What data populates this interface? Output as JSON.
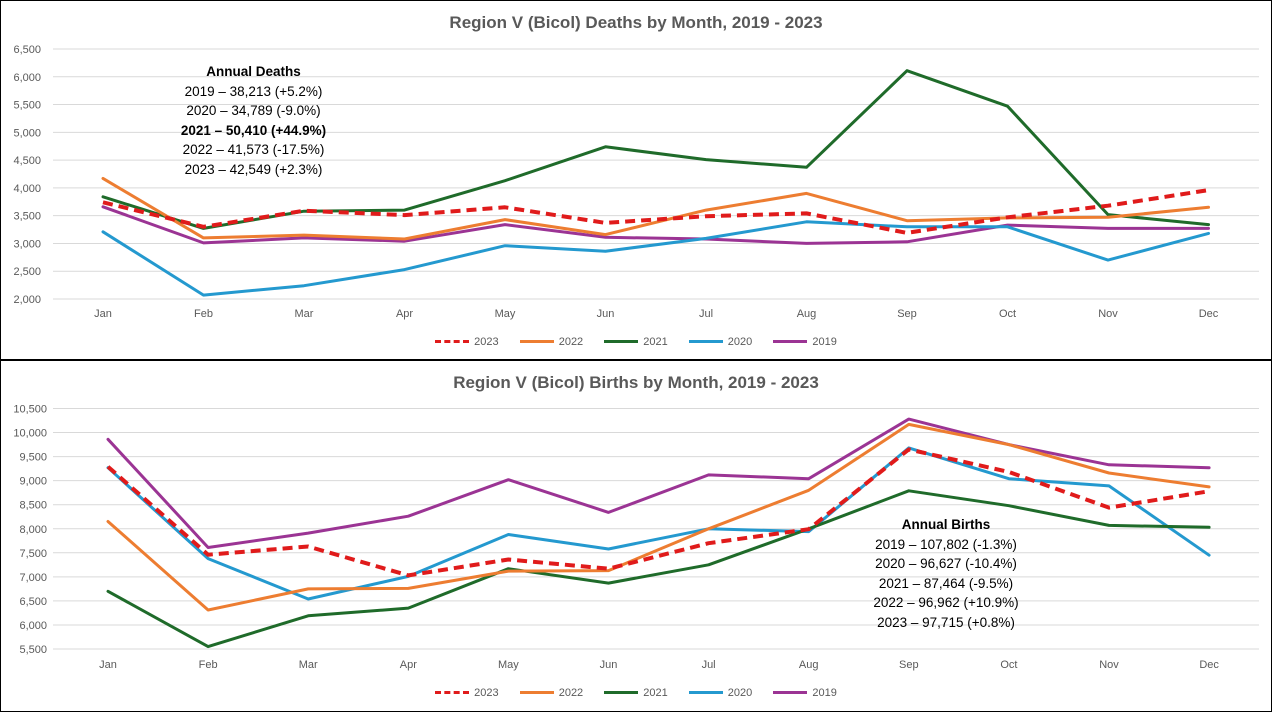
{
  "chart_data": [
    {
      "type": "line",
      "title": "Region V (Bicol) Deaths by Month, 2019 - 2023",
      "categories": [
        "Jan",
        "Feb",
        "Mar",
        "Apr",
        "May",
        "Jun",
        "Jul",
        "Aug",
        "Sep",
        "Oct",
        "Nov",
        "Dec"
      ],
      "ylim": [
        2000,
        6500
      ],
      "yticks": [
        "2,000",
        "2,500",
        "3,000",
        "3,500",
        "4,000",
        "4,500",
        "5,000",
        "5,500",
        "6,000",
        "6,500"
      ],
      "grid": true,
      "legend_position": "bottom",
      "series": [
        {
          "name": "2023",
          "color": "#e01b1b",
          "dashed": true,
          "values": [
            3740,
            3300,
            3590,
            3510,
            3650,
            3370,
            3490,
            3540,
            3190,
            3470,
            3680,
            3960
          ]
        },
        {
          "name": "2022",
          "color": "#ed7d31",
          "dashed": false,
          "values": [
            4170,
            3100,
            3150,
            3080,
            3430,
            3160,
            3600,
            3900,
            3410,
            3460,
            3470,
            3650
          ]
        },
        {
          "name": "2021",
          "color": "#1f6b2a",
          "dashed": false,
          "values": [
            3840,
            3270,
            3580,
            3600,
            4130,
            4740,
            4510,
            4370,
            6110,
            5470,
            3520,
            3340
          ]
        },
        {
          "name": "2020",
          "color": "#2499cf",
          "dashed": false,
          "values": [
            3210,
            2070,
            2240,
            2530,
            2960,
            2860,
            3090,
            3390,
            3300,
            3300,
            2700,
            3180
          ]
        },
        {
          "name": "2019",
          "color": "#9b3494",
          "dashed": false,
          "values": [
            3660,
            3010,
            3100,
            3040,
            3340,
            3110,
            3080,
            3000,
            3030,
            3330,
            3270,
            3270
          ]
        }
      ],
      "annotation": {
        "heading": "Annual Deaths",
        "lines": [
          {
            "text": "2019 – 38,213 (+5.2%)",
            "bold": false
          },
          {
            "text": "2020 – 34,789 (-9.0%)",
            "bold": false
          },
          {
            "text": "2021 – 50,410 (+44.9%)",
            "bold": true
          },
          {
            "text": "2022 – 41,573 (-17.5%)",
            "bold": false
          },
          {
            "text": "2023 – 42,549 (+2.3%)",
            "bold": false
          }
        ]
      }
    },
    {
      "type": "line",
      "title": "Region V (Bicol) Births by Month, 2019 - 2023",
      "categories": [
        "Jan",
        "Feb",
        "Mar",
        "Apr",
        "May",
        "Jun",
        "Jul",
        "Aug",
        "Sep",
        "Oct",
        "Nov",
        "Dec"
      ],
      "ylim": [
        5500,
        10500
      ],
      "yticks": [
        "5,500",
        "6,000",
        "6,500",
        "7,000",
        "7,500",
        "8,000",
        "8,500",
        "9,000",
        "9,500",
        "10,000",
        "10,500"
      ],
      "grid": true,
      "legend_position": "bottom",
      "series": [
        {
          "name": "2023",
          "color": "#e01b1b",
          "dashed": true,
          "values": [
            9290,
            7460,
            7630,
            7030,
            7360,
            7170,
            7700,
            7990,
            9650,
            9180,
            8440,
            8780
          ]
        },
        {
          "name": "2022",
          "color": "#ed7d31",
          "dashed": false,
          "values": [
            8150,
            6310,
            6750,
            6760,
            7120,
            7130,
            8000,
            8800,
            10170,
            9750,
            9160,
            8870
          ]
        },
        {
          "name": "2021",
          "color": "#1f6b2a",
          "dashed": false,
          "values": [
            6700,
            5550,
            6190,
            6350,
            7170,
            6870,
            7250,
            8000,
            8790,
            8480,
            8070,
            8030
          ]
        },
        {
          "name": "2020",
          "color": "#2499cf",
          "dashed": false,
          "values": [
            9270,
            7380,
            6540,
            7010,
            7880,
            7580,
            8000,
            7940,
            9680,
            9040,
            8890,
            7450
          ]
        },
        {
          "name": "2019",
          "color": "#9b3494",
          "dashed": false,
          "values": [
            9860,
            7610,
            7910,
            8260,
            9020,
            8340,
            9120,
            9040,
            10280,
            9750,
            9330,
            9270
          ]
        }
      ],
      "annotation": {
        "heading": "Annual Births",
        "lines": [
          {
            "text": "2019 – 107,802 (-1.3%)",
            "bold": false
          },
          {
            "text": "2020 – 96,627 (-10.4%)",
            "bold": false
          },
          {
            "text": "2021 – 87,464 (-9.5%)",
            "bold": false
          },
          {
            "text": "2022 – 96,962 (+10.9%)",
            "bold": false
          },
          {
            "text": "2023 – 97,715 (+0.8%)",
            "bold": false
          }
        ]
      }
    }
  ]
}
